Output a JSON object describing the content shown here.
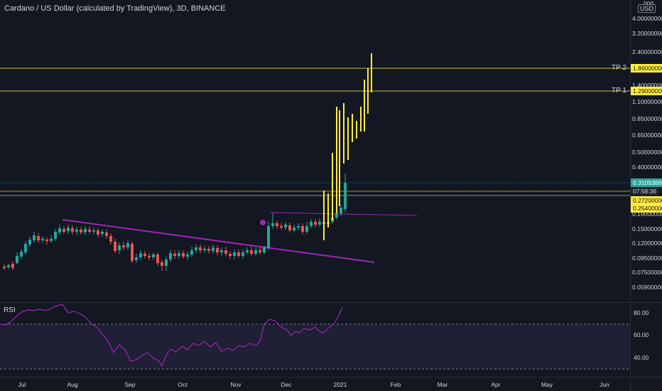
{
  "title": "Cardano / US Dollar (calculated by TradingView), 3D, BINANCE",
  "currency": "USD",
  "rsi_label": "RSI",
  "price_axis": [
    "4.00000000",
    "3.20000000",
    "2.40000000",
    "1.40000000",
    "1.10000000",
    "0.85000000",
    "0.65000000",
    "0.50000000",
    "0.40000000",
    "0.19000000",
    "0.15000000",
    "0.12000000",
    "0.09500000",
    "0.07500000",
    "0.05900000"
  ],
  "price_axis_top_partial": "000",
  "tags": {
    "tp2_price": "1.86000000",
    "tp1_price": "1.29000000",
    "current_price": "0.31093885",
    "countdown": "07:58:36",
    "level_a": "0.27200000",
    "level_b": "0.25400000"
  },
  "tp_labels": {
    "tp2": "TP 2",
    "tp1": "TP 1"
  },
  "time_axis": [
    "Jul",
    "Aug",
    "Sep",
    "Oct",
    "Nov",
    "Dec",
    "2021",
    "Feb",
    "Mar",
    "Apr",
    "May",
    "Jun"
  ],
  "rsi_axis": [
    "80.00",
    "60.00",
    "40.00"
  ],
  "colors": {
    "up": "#26a69a",
    "down": "#ef5350",
    "projection": "#ffeb3b",
    "trendline": "#9c27b0",
    "rsi": "#9c27b0",
    "level": "#cfc23a"
  }
}
